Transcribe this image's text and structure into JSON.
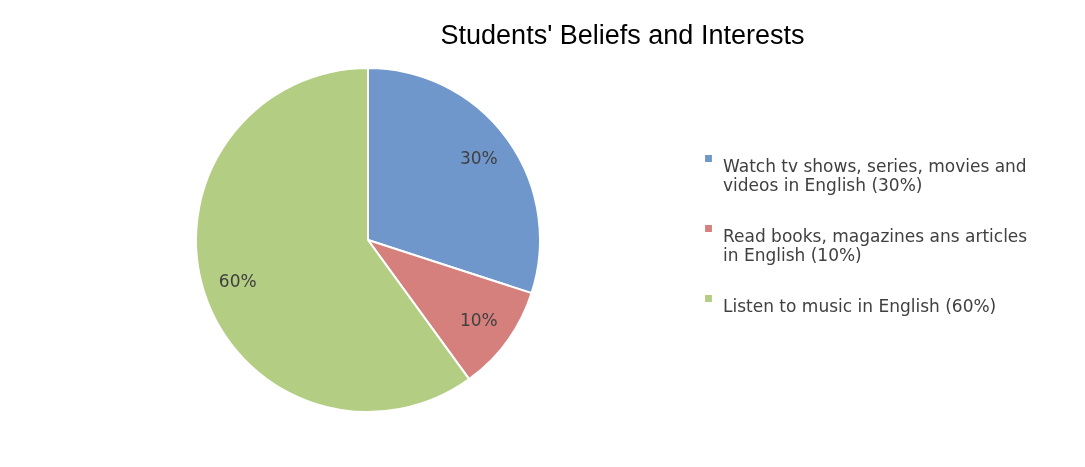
{
  "chart_data": {
    "type": "pie",
    "title": "Students' Beliefs and Interests",
    "categories": [
      "Watch tv shows, series, movies and videos in English (30%)",
      "Read books, magazines ans articles in English (10%)",
      "Listen to music in English (60%)"
    ],
    "values": [
      30,
      10,
      60
    ],
    "value_labels": [
      "30%",
      "10%",
      "60%"
    ],
    "colors": [
      "#6f97cc",
      "#d6807e",
      "#b3cd82"
    ],
    "legend": "right"
  }
}
